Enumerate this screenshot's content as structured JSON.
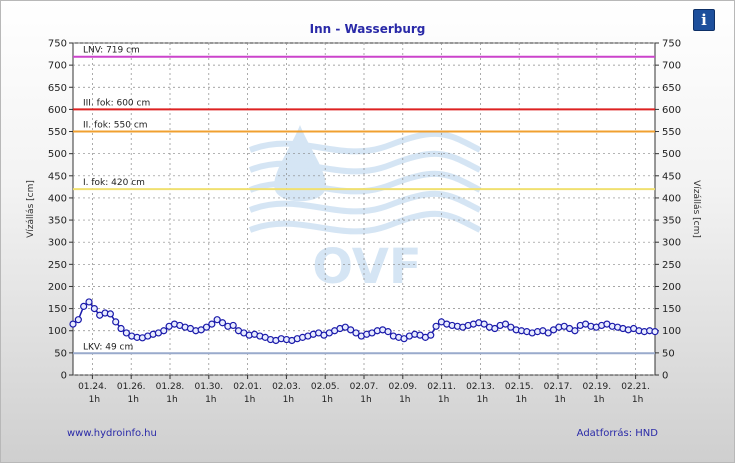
{
  "page": {
    "title": "Inn - Wasserburg",
    "info_icon": "i",
    "footer_left": "www.hydroinfo.hu",
    "footer_right": "Adatforrás: HND"
  },
  "chart_data": {
    "type": "line",
    "title": "Inn - Wasserburg",
    "ylabel": "Vízállás [cm]",
    "ylabel_right": "Vízállás [cm]",
    "ylim": [
      0,
      750
    ],
    "yticks": [
      0,
      50,
      100,
      150,
      200,
      250,
      300,
      350,
      400,
      450,
      500,
      550,
      600,
      650,
      700,
      750
    ],
    "grid": true,
    "xlim": [
      0,
      30
    ],
    "x_ticks": [
      {
        "date": "01.24.",
        "time": "1h"
      },
      {
        "date": "01.26.",
        "time": "1h"
      },
      {
        "date": "01.28.",
        "time": "1h"
      },
      {
        "date": "01.30.",
        "time": "1h"
      },
      {
        "date": "02.01.",
        "time": "1h"
      },
      {
        "date": "02.03.",
        "time": "1h"
      },
      {
        "date": "02.05.",
        "time": "1h"
      },
      {
        "date": "02.07.",
        "time": "1h"
      },
      {
        "date": "02.09.",
        "time": "1h"
      },
      {
        "date": "02.11.",
        "time": "1h"
      },
      {
        "date": "02.13.",
        "time": "1h"
      },
      {
        "date": "02.15.",
        "time": "1h"
      },
      {
        "date": "02.17.",
        "time": "1h"
      },
      {
        "date": "02.19.",
        "time": "1h"
      },
      {
        "date": "02.21.",
        "time": "1h"
      }
    ],
    "reference_lines": [
      {
        "label": "LNV: 719 cm",
        "value": 719,
        "color": "#cc44cc"
      },
      {
        "label": "III. fok: 600 cm",
        "value": 600,
        "color": "#dd2222"
      },
      {
        "label": "II. fok: 550 cm",
        "value": 550,
        "color": "#f0a030"
      },
      {
        "label": "I. fok: 420 cm",
        "value": 420,
        "color": "#f0e070"
      },
      {
        "label": "LKV: 49 cm",
        "value": 49,
        "color": "#99aacc"
      }
    ],
    "watermark": "OVF",
    "series": [
      {
        "color": "#1a1aaa",
        "values": [
          115,
          125,
          155,
          165,
          150,
          135,
          140,
          138,
          120,
          105,
          95,
          88,
          85,
          84,
          88,
          92,
          95,
          100,
          110,
          115,
          112,
          108,
          105,
          100,
          102,
          108,
          115,
          125,
          118,
          110,
          112,
          100,
          95,
          90,
          92,
          88,
          85,
          80,
          78,
          82,
          80,
          78,
          82,
          85,
          88,
          92,
          95,
          90,
          95,
          100,
          105,
          108,
          102,
          95,
          88,
          92,
          95,
          100,
          102,
          98,
          88,
          85,
          82,
          88,
          92,
          90,
          85,
          90,
          110,
          120,
          115,
          112,
          110,
          108,
          112,
          115,
          118,
          115,
          108,
          105,
          112,
          115,
          108,
          102,
          100,
          98,
          95,
          98,
          100,
          95,
          102,
          108,
          110,
          105,
          100,
          112,
          115,
          110,
          108,
          112,
          115,
          110,
          108,
          105,
          102,
          105,
          100,
          98,
          100,
          98
        ]
      }
    ]
  }
}
